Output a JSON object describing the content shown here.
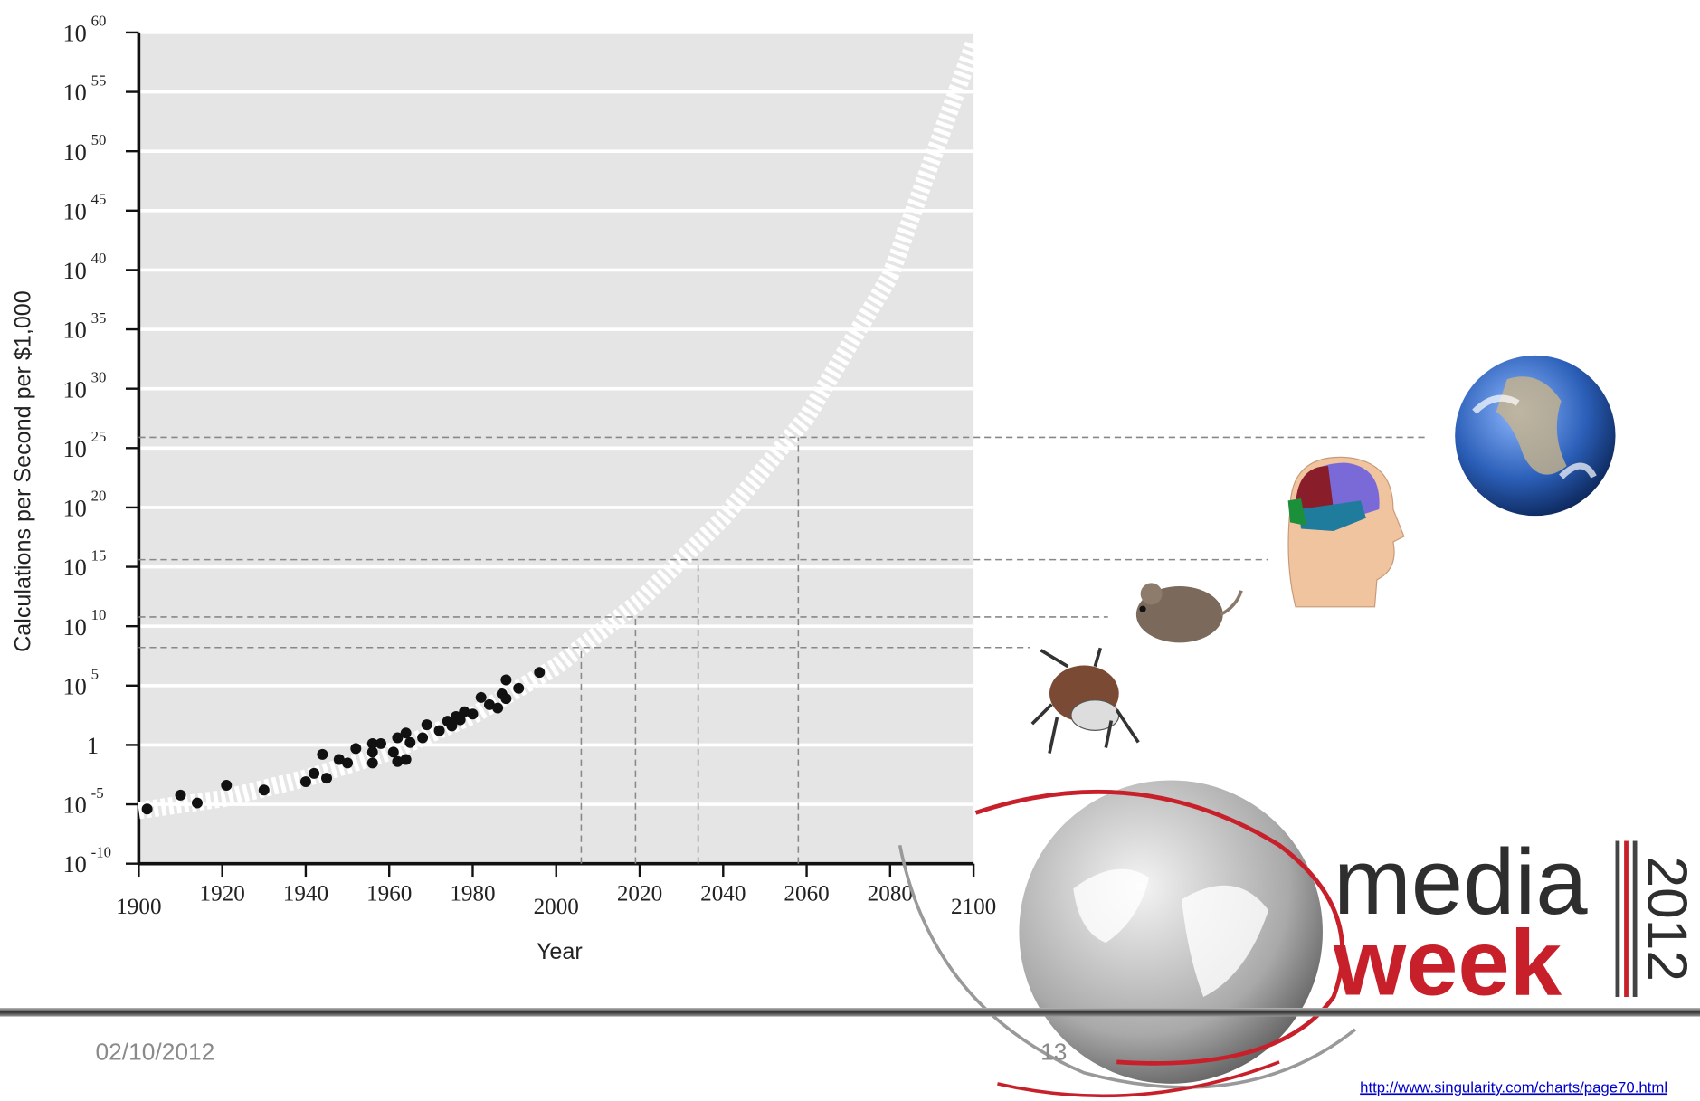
{
  "chart_data": {
    "type": "scatter",
    "log_y": true,
    "grid": true,
    "color": "#111111",
    "trend_color": "#ffffff",
    "reference_color": "#888888",
    "background": "#e5e5e6",
    "y_axis_label": "Calculations per Second per $1,000",
    "x_axis_label": "Year",
    "xlim": [
      1900,
      2100
    ],
    "xticks": [
      1900,
      1920,
      1940,
      1960,
      1980,
      2000,
      2020,
      2040,
      2060,
      2080,
      2100
    ],
    "ylim": [
      1e-10,
      1e+60
    ],
    "yticks": [
      {
        "value": 1e-10,
        "label": "10",
        "exponent": "-10"
      },
      {
        "value": 1e-05,
        "label": "10",
        "exponent": "-5"
      },
      {
        "value": 1,
        "label": "1"
      },
      {
        "value": 100000.0,
        "label": "10",
        "exponent": "5"
      },
      {
        "value": 10000000000.0,
        "label": "10",
        "exponent": "10"
      },
      {
        "value": 1000000000000000.0,
        "label": "10",
        "exponent": "15"
      },
      {
        "value": 1e+20,
        "label": "10",
        "exponent": "20"
      },
      {
        "value": 1e+25,
        "label": "10",
        "exponent": "25"
      },
      {
        "value": 1e+30,
        "label": "10",
        "exponent": "30"
      },
      {
        "value": 1e+35,
        "label": "10",
        "exponent": "35"
      },
      {
        "value": 1e+40,
        "label": "10",
        "exponent": "40"
      },
      {
        "value": 1e+45,
        "label": "10",
        "exponent": "45"
      },
      {
        "value": 1e+50,
        "label": "10",
        "exponent": "50"
      },
      {
        "value": 1e+55,
        "label": "10",
        "exponent": "55"
      },
      {
        "value": 1e+60,
        "label": "10",
        "exponent": "60"
      }
    ],
    "x": [
      1902,
      1910,
      1914,
      1921,
      1930,
      1940,
      1942,
      1944,
      1945,
      1948,
      1950,
      1952,
      1956,
      1956,
      1956,
      1958,
      1961,
      1962,
      1962,
      1964,
      1964,
      1965,
      1968,
      1969,
      1972,
      1974,
      1975,
      1976,
      1977,
      1978,
      1980,
      1982,
      1984,
      1986,
      1987,
      1988,
      1988,
      1991,
      1996
    ],
    "values": [
      4e-06,
      6e-05,
      1.3e-05,
      0.0004,
      0.00016,
      0.0008,
      0.004,
      0.16,
      0.0016,
      0.06,
      0.03,
      0.5,
      1.3,
      0.03,
      0.25,
      1.3,
      0.25,
      4,
      0.04,
      0.06,
      10,
      1.6,
      4,
      50,
      16,
      100,
      40,
      250,
      130,
      630,
      400,
      10000,
      2500,
      1300,
      20000,
      300000.0,
      8000,
      60000.0,
      1300000.0
    ],
    "trend": {
      "x": [
        1900,
        1920,
        1940,
        1960,
        1980,
        2000,
        2020,
        2040,
        2060,
        2080,
        2100
      ],
      "values": [
        3e-06,
        3e-05,
        0.0016,
        0.25,
        300,
        4000000.0,
        1300000000000.0,
        1.3e+19,
        4e+27,
        3e+39,
        1e+59
      ]
    },
    "reference_lines": {
      "x": [
        2006,
        2019,
        2034,
        2058
      ],
      "values": [
        160000000.0,
        60000000000.0,
        4000000000000000.0,
        8e+25
      ]
    }
  },
  "logo": {
    "word1": "media",
    "word2": "week",
    "year": "2012"
  },
  "footer": {
    "date": "02/10/2012",
    "page": "13",
    "url": "http://www.singularity.com/charts/page70.html"
  }
}
